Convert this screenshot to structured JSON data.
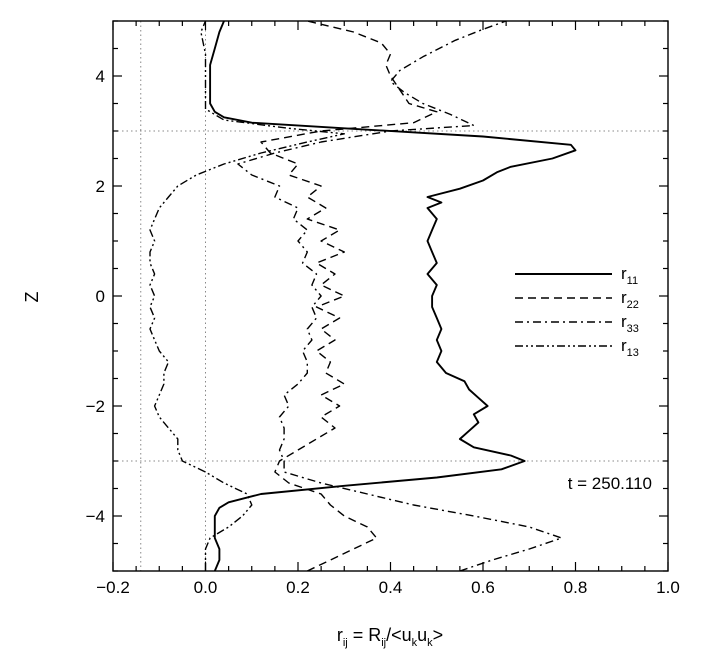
{
  "chart_data": {
    "type": "line",
    "title": "",
    "xlabel": {
      "main": "r",
      "main_sub": "ij",
      "eq": " = R",
      "eq_sub": "ij",
      "slash": "/<u",
      "k1": "k",
      "u2": "u",
      "k2": "k",
      "close": ">"
    },
    "ylabel": "Z",
    "xlim": [
      -0.2,
      1.0
    ],
    "ylim": [
      -5,
      5
    ],
    "x_ticks": [
      -0.2,
      0.0,
      0.2,
      0.4,
      0.6,
      0.8,
      1.0
    ],
    "x_tick_labels": [
      "−0.2",
      "0.0",
      "0.2",
      "0.4",
      "0.6",
      "0.8",
      "1.0"
    ],
    "y_ticks": [
      -4,
      -2,
      0,
      2,
      4
    ],
    "y_tick_labels": [
      "−4",
      "−2",
      "0",
      "2",
      "4"
    ],
    "reference_lines": {
      "x": [
        -0.14,
        0.0
      ],
      "y": [
        -3.0,
        3.0
      ]
    },
    "annotation": "t = 250.110",
    "legend_position": "right",
    "series": [
      {
        "name": "r",
        "sub": "11",
        "dash": "solid",
        "points": [
          [
            0.02,
            -5.0
          ],
          [
            0.03,
            -4.8
          ],
          [
            0.03,
            -4.6
          ],
          [
            0.02,
            -4.4
          ],
          [
            0.02,
            -4.2
          ],
          [
            0.02,
            -4.0
          ],
          [
            0.03,
            -3.85
          ],
          [
            0.05,
            -3.75
          ],
          [
            0.12,
            -3.6
          ],
          [
            0.3,
            -3.45
          ],
          [
            0.5,
            -3.3
          ],
          [
            0.64,
            -3.15
          ],
          [
            0.69,
            -3.0
          ],
          [
            0.66,
            -2.9
          ],
          [
            0.58,
            -2.75
          ],
          [
            0.55,
            -2.6
          ],
          [
            0.57,
            -2.45
          ],
          [
            0.59,
            -2.3
          ],
          [
            0.58,
            -2.15
          ],
          [
            0.61,
            -2.0
          ],
          [
            0.59,
            -1.85
          ],
          [
            0.57,
            -1.7
          ],
          [
            0.56,
            -1.55
          ],
          [
            0.52,
            -1.4
          ],
          [
            0.5,
            -1.2
          ],
          [
            0.51,
            -1.0
          ],
          [
            0.5,
            -0.8
          ],
          [
            0.51,
            -0.6
          ],
          [
            0.5,
            -0.4
          ],
          [
            0.49,
            -0.2
          ],
          [
            0.49,
            0.0
          ],
          [
            0.5,
            0.2
          ],
          [
            0.48,
            0.4
          ],
          [
            0.5,
            0.6
          ],
          [
            0.49,
            0.8
          ],
          [
            0.48,
            1.0
          ],
          [
            0.49,
            1.2
          ],
          [
            0.5,
            1.4
          ],
          [
            0.48,
            1.6
          ],
          [
            0.51,
            1.7
          ],
          [
            0.48,
            1.8
          ],
          [
            0.55,
            1.95
          ],
          [
            0.6,
            2.1
          ],
          [
            0.63,
            2.25
          ],
          [
            0.66,
            2.35
          ],
          [
            0.75,
            2.5
          ],
          [
            0.8,
            2.65
          ],
          [
            0.79,
            2.75
          ],
          [
            0.6,
            2.9
          ],
          [
            0.3,
            3.05
          ],
          [
            0.1,
            3.15
          ],
          [
            0.04,
            3.25
          ],
          [
            0.02,
            3.35
          ],
          [
            0.01,
            3.5
          ],
          [
            0.01,
            3.7
          ],
          [
            0.01,
            4.0
          ],
          [
            0.01,
            4.2
          ],
          [
            0.02,
            4.5
          ],
          [
            0.03,
            4.8
          ],
          [
            0.04,
            5.0
          ]
        ]
      },
      {
        "name": "r",
        "sub": "22",
        "dash": "dashed",
        "points": [
          [
            0.22,
            -5.0
          ],
          [
            0.27,
            -4.8
          ],
          [
            0.32,
            -4.6
          ],
          [
            0.37,
            -4.4
          ],
          [
            0.35,
            -4.2
          ],
          [
            0.3,
            -4.0
          ],
          [
            0.27,
            -3.8
          ],
          [
            0.25,
            -3.6
          ],
          [
            0.18,
            -3.4
          ],
          [
            0.15,
            -3.2
          ],
          [
            0.16,
            -3.0
          ],
          [
            0.2,
            -2.8
          ],
          [
            0.24,
            -2.6
          ],
          [
            0.28,
            -2.4
          ],
          [
            0.25,
            -2.2
          ],
          [
            0.29,
            -2.0
          ],
          [
            0.25,
            -1.8
          ],
          [
            0.3,
            -1.6
          ],
          [
            0.26,
            -1.4
          ],
          [
            0.27,
            -1.2
          ],
          [
            0.24,
            -1.0
          ],
          [
            0.28,
            -0.8
          ],
          [
            0.25,
            -0.6
          ],
          [
            0.29,
            -0.4
          ],
          [
            0.24,
            -0.2
          ],
          [
            0.3,
            0.0
          ],
          [
            0.25,
            0.2
          ],
          [
            0.28,
            0.4
          ],
          [
            0.24,
            0.6
          ],
          [
            0.3,
            0.8
          ],
          [
            0.25,
            1.0
          ],
          [
            0.29,
            1.2
          ],
          [
            0.22,
            1.4
          ],
          [
            0.26,
            1.6
          ],
          [
            0.22,
            1.8
          ],
          [
            0.25,
            2.0
          ],
          [
            0.18,
            2.2
          ],
          [
            0.2,
            2.4
          ],
          [
            0.14,
            2.6
          ],
          [
            0.12,
            2.8
          ],
          [
            0.25,
            3.0
          ],
          [
            0.45,
            3.15
          ],
          [
            0.5,
            3.35
          ],
          [
            0.44,
            3.5
          ],
          [
            0.42,
            3.75
          ],
          [
            0.4,
            4.0
          ],
          [
            0.39,
            4.2
          ],
          [
            0.4,
            4.4
          ],
          [
            0.38,
            4.6
          ],
          [
            0.32,
            4.8
          ],
          [
            0.22,
            5.0
          ]
        ]
      },
      {
        "name": "r",
        "sub": "33",
        "dash": "dashdot",
        "points": [
          [
            0.55,
            -5.0
          ],
          [
            0.62,
            -4.8
          ],
          [
            0.7,
            -4.6
          ],
          [
            0.77,
            -4.4
          ],
          [
            0.7,
            -4.2
          ],
          [
            0.58,
            -4.0
          ],
          [
            0.45,
            -3.8
          ],
          [
            0.35,
            -3.6
          ],
          [
            0.25,
            -3.4
          ],
          [
            0.17,
            -3.2
          ],
          [
            0.17,
            -3.0
          ],
          [
            0.16,
            -2.8
          ],
          [
            0.17,
            -2.6
          ],
          [
            0.17,
            -2.4
          ],
          [
            0.16,
            -2.2
          ],
          [
            0.18,
            -2.0
          ],
          [
            0.17,
            -1.8
          ],
          [
            0.2,
            -1.6
          ],
          [
            0.22,
            -1.4
          ],
          [
            0.22,
            -1.2
          ],
          [
            0.21,
            -1.0
          ],
          [
            0.23,
            -0.8
          ],
          [
            0.22,
            -0.6
          ],
          [
            0.24,
            -0.4
          ],
          [
            0.23,
            -0.2
          ],
          [
            0.25,
            0.0
          ],
          [
            0.23,
            0.2
          ],
          [
            0.24,
            0.4
          ],
          [
            0.21,
            0.6
          ],
          [
            0.22,
            0.8
          ],
          [
            0.2,
            1.0
          ],
          [
            0.22,
            1.2
          ],
          [
            0.19,
            1.4
          ],
          [
            0.2,
            1.6
          ],
          [
            0.15,
            1.8
          ],
          [
            0.16,
            2.0
          ],
          [
            0.1,
            2.2
          ],
          [
            0.07,
            2.4
          ],
          [
            0.15,
            2.6
          ],
          [
            0.25,
            2.8
          ],
          [
            0.4,
            3.0
          ],
          [
            0.58,
            3.1
          ],
          [
            0.53,
            3.3
          ],
          [
            0.47,
            3.5
          ],
          [
            0.43,
            3.7
          ],
          [
            0.4,
            3.9
          ],
          [
            0.42,
            4.1
          ],
          [
            0.47,
            4.35
          ],
          [
            0.54,
            4.65
          ],
          [
            0.6,
            4.85
          ],
          [
            0.65,
            5.0
          ]
        ]
      },
      {
        "name": "r",
        "sub": "13",
        "dash": "dashdotdot",
        "points": [
          [
            0.0,
            -5.0
          ],
          [
            0.0,
            -4.8
          ],
          [
            0.0,
            -4.6
          ],
          [
            0.01,
            -4.4
          ],
          [
            0.05,
            -4.2
          ],
          [
            0.08,
            -4.0
          ],
          [
            0.1,
            -3.8
          ],
          [
            0.09,
            -3.6
          ],
          [
            0.04,
            -3.4
          ],
          [
            0.0,
            -3.2
          ],
          [
            -0.05,
            -3.0
          ],
          [
            -0.06,
            -2.8
          ],
          [
            -0.06,
            -2.6
          ],
          [
            -0.08,
            -2.4
          ],
          [
            -0.1,
            -2.2
          ],
          [
            -0.11,
            -2.0
          ],
          [
            -0.1,
            -1.8
          ],
          [
            -0.09,
            -1.6
          ],
          [
            -0.09,
            -1.4
          ],
          [
            -0.08,
            -1.2
          ],
          [
            -0.1,
            -1.0
          ],
          [
            -0.11,
            -0.8
          ],
          [
            -0.12,
            -0.6
          ],
          [
            -0.11,
            -0.4
          ],
          [
            -0.12,
            -0.2
          ],
          [
            -0.11,
            0.0
          ],
          [
            -0.12,
            0.2
          ],
          [
            -0.11,
            0.4
          ],
          [
            -0.12,
            0.6
          ],
          [
            -0.12,
            0.8
          ],
          [
            -0.11,
            1.0
          ],
          [
            -0.12,
            1.2
          ],
          [
            -0.11,
            1.4
          ],
          [
            -0.1,
            1.6
          ],
          [
            -0.08,
            1.8
          ],
          [
            -0.06,
            2.0
          ],
          [
            -0.02,
            2.2
          ],
          [
            0.04,
            2.4
          ],
          [
            0.12,
            2.6
          ],
          [
            0.22,
            2.8
          ],
          [
            0.3,
            2.95
          ],
          [
            0.18,
            3.05
          ],
          [
            0.04,
            3.2
          ],
          [
            0.0,
            3.4
          ],
          [
            0.0,
            3.6
          ],
          [
            0.0,
            4.0
          ],
          [
            0.0,
            4.4
          ],
          [
            -0.01,
            4.8
          ],
          [
            0.0,
            5.0
          ]
        ]
      }
    ]
  }
}
